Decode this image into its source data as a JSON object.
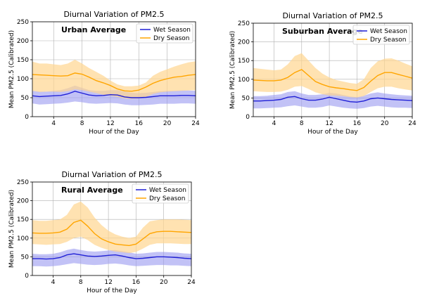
{
  "colors": {
    "wet_line": "#1f1fd6",
    "wet_band": "#9999f0",
    "dry_line": "#ffa500",
    "dry_band": "#ffd590",
    "grid": "#b0b0b0"
  },
  "chart_data": [
    {
      "type": "line",
      "title": "Diurnal Variation of PM2.5",
      "annotation": "Urban Average",
      "xlabel": "Hour of the Day",
      "ylabel": "Mean PM2.5 (Calibrated)",
      "xlim": [
        1,
        24
      ],
      "ylim": [
        0,
        250
      ],
      "xticks": [
        4,
        8,
        12,
        16,
        20,
        24
      ],
      "yticks": [
        0,
        50,
        100,
        150,
        200,
        250
      ],
      "grid": true,
      "legend_position": "top-right",
      "x": [
        1,
        2,
        3,
        4,
        5,
        6,
        7,
        8,
        9,
        10,
        11,
        12,
        13,
        14,
        15,
        16,
        17,
        18,
        19,
        20,
        21,
        22,
        23,
        24
      ],
      "series": [
        {
          "name": "Wet Season",
          "color_key": "wet",
          "values": [
            55,
            53,
            54,
            55,
            56,
            60,
            67,
            62,
            57,
            55,
            56,
            58,
            57,
            52,
            50,
            50,
            51,
            53,
            55,
            55,
            55,
            56,
            56,
            55
          ],
          "upper": [
            68,
            66,
            66,
            68,
            70,
            75,
            82,
            76,
            70,
            68,
            68,
            70,
            70,
            66,
            63,
            62,
            63,
            65,
            67,
            68,
            68,
            69,
            69,
            68
          ],
          "lower": [
            35,
            32,
            33,
            34,
            35,
            37,
            40,
            38,
            35,
            34,
            35,
            36,
            35,
            32,
            30,
            30,
            31,
            32,
            34,
            34,
            34,
            35,
            35,
            34
          ]
        },
        {
          "name": "Dry Season",
          "color_key": "dry",
          "values": [
            111,
            110,
            109,
            108,
            107,
            108,
            115,
            112,
            104,
            95,
            89,
            82,
            73,
            68,
            67,
            70,
            78,
            88,
            95,
            100,
            104,
            106,
            109,
            111
          ],
          "upper": [
            145,
            140,
            140,
            138,
            136,
            140,
            150,
            140,
            128,
            118,
            108,
            95,
            85,
            80,
            80,
            82,
            90,
            108,
            118,
            125,
            132,
            138,
            143,
            146
          ],
          "lower": [
            68,
            65,
            66,
            66,
            65,
            67,
            72,
            70,
            66,
            62,
            58,
            55,
            52,
            48,
            47,
            48,
            52,
            60,
            64,
            66,
            67,
            68,
            69,
            70
          ]
        }
      ]
    },
    {
      "type": "line",
      "title": "Diurnal Variation of PM2.5",
      "annotation": "Suburban Average",
      "xlabel": "Hour of the Day",
      "ylabel": "Mean PM2.5 (Calibrated)",
      "xlim": [
        1,
        24
      ],
      "ylim": [
        0,
        250
      ],
      "xticks": [
        4,
        8,
        12,
        16,
        20,
        24
      ],
      "yticks": [
        0,
        50,
        100,
        150,
        200,
        250
      ],
      "grid": true,
      "legend_position": "top-right",
      "x": [
        1,
        2,
        3,
        4,
        5,
        6,
        7,
        8,
        9,
        10,
        11,
        12,
        13,
        14,
        15,
        16,
        17,
        18,
        19,
        20,
        21,
        22,
        23,
        24
      ],
      "series": [
        {
          "name": "Wet Season",
          "color_key": "wet",
          "values": [
            42,
            42,
            43,
            44,
            46,
            52,
            54,
            48,
            44,
            44,
            47,
            52,
            48,
            44,
            40,
            39,
            42,
            48,
            50,
            48,
            46,
            45,
            44,
            43
          ],
          "upper": [
            55,
            55,
            56,
            58,
            60,
            66,
            68,
            62,
            58,
            58,
            60,
            64,
            62,
            58,
            54,
            52,
            56,
            62,
            65,
            62,
            60,
            58,
            57,
            56
          ],
          "lower": [
            22,
            22,
            23,
            24,
            25,
            28,
            30,
            27,
            24,
            24,
            26,
            30,
            27,
            24,
            22,
            21,
            23,
            27,
            29,
            27,
            25,
            24,
            24,
            23
          ]
        },
        {
          "name": "Dry Season",
          "color_key": "dry",
          "values": [
            98,
            97,
            96,
            96,
            98,
            105,
            118,
            126,
            110,
            94,
            86,
            80,
            77,
            75,
            72,
            70,
            78,
            95,
            110,
            118,
            118,
            113,
            108,
            103
          ],
          "upper": [
            130,
            128,
            126,
            124,
            126,
            140,
            162,
            170,
            150,
            130,
            115,
            105,
            98,
            94,
            90,
            88,
            100,
            130,
            148,
            155,
            156,
            150,
            142,
            135
          ],
          "lower": [
            68,
            67,
            66,
            66,
            67,
            72,
            80,
            82,
            74,
            65,
            60,
            57,
            56,
            55,
            52,
            51,
            55,
            66,
            76,
            80,
            80,
            76,
            73,
            70
          ]
        }
      ]
    },
    {
      "type": "line",
      "title": "Diurnal Variation of PM2.5",
      "annotation": "Rural Average",
      "xlabel": "Hour of the Day",
      "ylabel": "Mean PM2.5 (Calibrated)",
      "xlim": [
        1,
        24
      ],
      "ylim": [
        0,
        250
      ],
      "xticks": [
        4,
        8,
        12,
        16,
        20,
        24
      ],
      "yticks": [
        0,
        50,
        100,
        150,
        200,
        250
      ],
      "grid": true,
      "legend_position": "top-right",
      "x": [
        1,
        2,
        3,
        4,
        5,
        6,
        7,
        8,
        9,
        10,
        11,
        12,
        13,
        14,
        15,
        16,
        17,
        18,
        19,
        20,
        21,
        22,
        23,
        24
      ],
      "series": [
        {
          "name": "Wet Season",
          "color_key": "wet",
          "values": [
            45,
            45,
            44,
            45,
            48,
            55,
            58,
            55,
            52,
            51,
            52,
            54,
            55,
            52,
            48,
            45,
            46,
            48,
            50,
            50,
            49,
            48,
            46,
            45
          ],
          "upper": [
            58,
            57,
            57,
            58,
            62,
            68,
            72,
            68,
            65,
            64,
            65,
            67,
            68,
            65,
            62,
            58,
            59,
            61,
            63,
            63,
            62,
            61,
            59,
            58
          ],
          "lower": [
            25,
            25,
            24,
            25,
            27,
            30,
            33,
            31,
            29,
            28,
            29,
            31,
            32,
            30,
            27,
            25,
            26,
            27,
            28,
            28,
            27,
            27,
            26,
            25
          ]
        },
        {
          "name": "Dry Season",
          "color_key": "dry",
          "values": [
            114,
            113,
            113,
            114,
            116,
            124,
            142,
            148,
            132,
            112,
            98,
            90,
            84,
            82,
            80,
            84,
            98,
            112,
            117,
            118,
            118,
            117,
            116,
            115
          ],
          "upper": [
            148,
            146,
            146,
            148,
            150,
            162,
            190,
            198,
            182,
            155,
            135,
            120,
            110,
            104,
            100,
            104,
            128,
            145,
            148,
            150,
            150,
            150,
            149,
            148
          ],
          "lower": [
            84,
            83,
            82,
            83,
            84,
            90,
            100,
            104,
            95,
            82,
            74,
            68,
            64,
            62,
            60,
            63,
            72,
            82,
            86,
            86,
            86,
            85,
            84,
            84
          ]
        }
      ]
    }
  ]
}
